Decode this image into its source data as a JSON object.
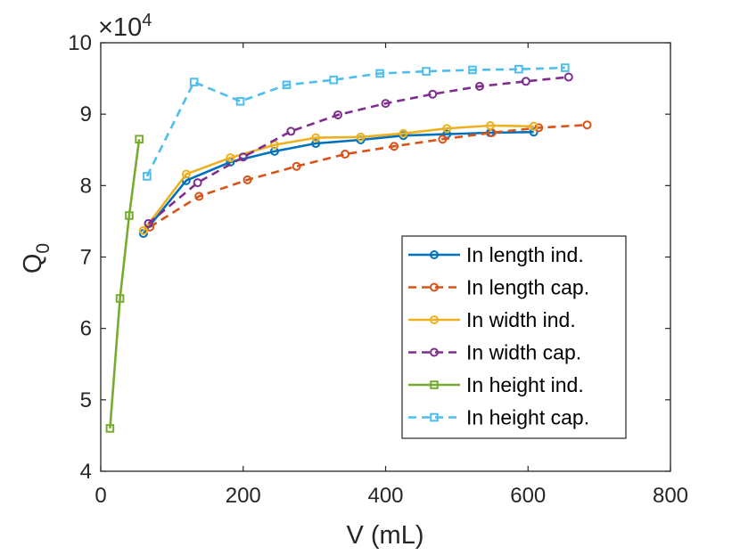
{
  "chart_data": {
    "type": "line",
    "xlabel": "V (mL)",
    "ylabel": "Q",
    "ylabel_subscript": "0",
    "xlim": [
      0,
      800
    ],
    "ylim": [
      4,
      10
    ],
    "x_ticks": [
      0,
      200,
      400,
      600,
      800
    ],
    "y_ticks": [
      4,
      5,
      6,
      7,
      8,
      9,
      10
    ],
    "x_tick_labels": [
      "0",
      "200",
      "400",
      "600",
      "800"
    ],
    "y_tick_labels": [
      "4",
      "5",
      "6",
      "7",
      "8",
      "9",
      "10"
    ],
    "y_multiplier_base": "×10",
    "y_multiplier_exponent": "4",
    "grid": false,
    "legend_position": "bottom-right",
    "series": [
      {
        "name": "In length ind.",
        "color": "#0072BD",
        "line_style": "solid",
        "marker": "circle",
        "x": [
          60,
          120,
          182,
          244,
          302,
          365,
          425,
          486,
          547,
          608
        ],
        "y": [
          7.33,
          8.07,
          8.33,
          8.48,
          8.59,
          8.64,
          8.7,
          8.72,
          8.74,
          8.75
        ]
      },
      {
        "name": "In length cap.",
        "color": "#D95319",
        "line_style": "dashed",
        "marker": "circle",
        "x": [
          69,
          138,
          206,
          275,
          343,
          412,
          480,
          549,
          615,
          683
        ],
        "y": [
          7.42,
          7.85,
          8.08,
          8.27,
          8.44,
          8.55,
          8.65,
          8.74,
          8.81,
          8.85
        ]
      },
      {
        "name": "In width ind.",
        "color": "#EDB120",
        "line_style": "solid",
        "marker": "circle",
        "x": [
          60,
          120,
          182,
          244,
          302,
          365,
          425,
          486,
          547,
          608
        ],
        "y": [
          7.37,
          8.16,
          8.39,
          8.57,
          8.67,
          8.68,
          8.73,
          8.8,
          8.84,
          8.83
        ]
      },
      {
        "name": "In width cap.",
        "color": "#7E2F8E",
        "line_style": "dashed",
        "marker": "circle",
        "x": [
          67,
          136,
          200,
          267,
          333,
          400,
          466,
          532,
          597,
          657
        ],
        "y": [
          7.47,
          8.04,
          8.4,
          8.76,
          8.99,
          9.15,
          9.28,
          9.39,
          9.46,
          9.52
        ]
      },
      {
        "name": "In height ind.",
        "color": "#77AC30",
        "line_style": "solid",
        "marker": "square",
        "x": [
          13,
          27,
          40,
          54
        ],
        "y": [
          4.6,
          6.42,
          7.58,
          8.65
        ]
      },
      {
        "name": "In height cap.",
        "color": "#4DBEEE",
        "line_style": "dashed",
        "marker": "square",
        "x": [
          65,
          131,
          196,
          261,
          327,
          392,
          457,
          522,
          587,
          652
        ],
        "y": [
          8.13,
          9.45,
          9.18,
          9.41,
          9.48,
          9.57,
          9.6,
          9.62,
          9.63,
          9.65
        ]
      }
    ]
  }
}
